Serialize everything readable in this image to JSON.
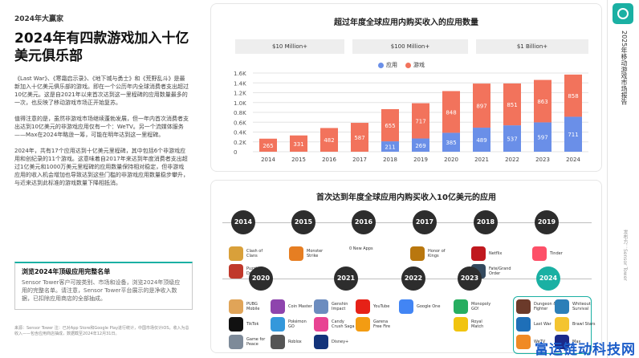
{
  "left": {
    "eyebrow": "2024年大赢家",
    "headline": "2024年有四款游戏加入十亿美元俱乐部",
    "para1": "《Last War》、《寒霜启示录》、《地下城与勇士》和《荒野乱斗》是最新加入十亿美元俱乐部的游戏。即在一个公历年内全球消费者支出超过10亿美元。这是自2021年以来首次达到这一里程碑的应用数量最多的一次，也反映了移动游戏市场正开始复苏。",
    "para2": "值得注意的是，虽然非游戏市场继续蓬勃发展，但一年内首次消费者支出达到10亿美元的非游戏应用仅有一个：WeTV。另一个流媒体服务——Max在2024年略逊一筹，可能在明年达到这一里程碑。",
    "para3": "2024年，共有17个应用达到十亿美元里程碑，其中包括6个非游戏应用和创纪录的11个游戏。这意味着自2017年来达到年度消费者支出超过1亿美元和1000万美元里程碑的应用数量保持相对稳定，但非游戏应用的收入机会增加也导致达到这些门槛的非游戏应用数量稳步攀升，与近来达到此标准的游戏数量下降相抵消。",
    "callout_title": "浏览2024年顶级应用完整名单",
    "callout_body": "Sensor Tower客户可按类别、市场和设备，浏览2024年顶级应用的完整名单。请注意，Sensor Tower平台展示的是净收入数据，已扣除应用商店的全部抽成。",
    "footnote": "来源：Sensor Tower 注：已对App Store和Google Play进行统计，中国市场仅计iOS，收入为总收入——包含应用商店抽成，数据截至2024年12月31日。"
  },
  "sidebar": {
    "vertical_title": "2025年移动游戏市场报告",
    "vertical_sub": "发布方：Sensor Tower"
  },
  "watermark": "富运链动科技网",
  "chart_data": {
    "type": "bar",
    "title": "超过年度全球应用内购买收入的应用数量",
    "bands": [
      "$10 Million+",
      "$100 Million+",
      "$1 Billion+"
    ],
    "legend": [
      {
        "name": "应用",
        "color": "#6a8fe8"
      },
      {
        "name": "游戏",
        "color": "#f2735c"
      }
    ],
    "categories": [
      "2014",
      "2015",
      "2016",
      "2017",
      "2018",
      "2019",
      "2020",
      "2021",
      "2022",
      "2023",
      "2024"
    ],
    "series": [
      {
        "name": "应用",
        "values": [
          0,
          0,
          0,
          0,
          211,
          269,
          385,
          489,
          537,
          597,
          711
        ]
      },
      {
        "name": "游戏",
        "values": [
          265,
          331,
          482,
          587,
          655,
          717,
          848,
          897,
          851,
          863,
          858
        ]
      }
    ],
    "ylim": [
      0,
      1600
    ],
    "yticks": [
      "0",
      "0.2K",
      "0.4K",
      "0.6K",
      "0.8K",
      "1.0K",
      "1.2K",
      "1.4K",
      "1.6K"
    ],
    "grid": true,
    "legend_position": "top-center"
  },
  "timeline": {
    "title": "首次达到年度全球应用内购买收入10亿美元的应用",
    "rows": [
      {
        "years": [
          {
            "year": "2014",
            "apps": [
              {
                "name": "Clash of Clans",
                "color": "#d9a03a"
              },
              {
                "name": "Puzzle & Dragons",
                "color": "#c0392b"
              }
            ]
          },
          {
            "year": "2015",
            "apps": [
              {
                "name": "Monster Strike",
                "color": "#e67e22"
              }
            ]
          },
          {
            "year": "2016",
            "apps": [
              {
                "name": "0 New Apps",
                "color": ""
              }
            ]
          },
          {
            "year": "2017",
            "apps": [
              {
                "name": "Honor of Kings",
                "color": "#b9770e"
              }
            ]
          },
          {
            "year": "2018",
            "apps": [
              {
                "name": "Netflix",
                "color": "#c0181e"
              },
              {
                "name": "Fate/Grand Order",
                "color": "#34495e"
              }
            ]
          },
          {
            "year": "2019",
            "apps": [
              {
                "name": "Tinder",
                "color": "#fd5068"
              }
            ]
          }
        ]
      },
      {
        "years": [
          {
            "year": "2020",
            "apps": [
              {
                "name": "PUBG Mobile",
                "color": "#e0a458"
              },
              {
                "name": "TikTok",
                "color": "#111111"
              },
              {
                "name": "Game for Peace",
                "color": "#7d8a99"
              }
            ]
          },
          {
            "year": "2020b",
            "apps": [
              {
                "name": "Coin Master",
                "color": "#8e44ad"
              },
              {
                "name": "Pokémon GO",
                "color": "#3498db"
              },
              {
                "name": "Roblox",
                "color": "#555555"
              }
            ]
          },
          {
            "year": "2021",
            "apps": [
              {
                "name": "Genshin Impact",
                "color": "#6c8cbf"
              },
              {
                "name": "Candy Crush Saga",
                "color": "#e84393"
              },
              {
                "name": "Disney+",
                "color": "#12337a"
              }
            ]
          },
          {
            "year": "2021b",
            "apps": [
              {
                "name": "YouTube",
                "color": "#e62117"
              },
              {
                "name": "Garena Free Fire",
                "color": "#f39c12"
              }
            ]
          },
          {
            "year": "2022",
            "apps": [
              {
                "name": "Google One",
                "color": "#4285f4"
              }
            ]
          },
          {
            "year": "2023",
            "apps": [
              {
                "name": "Monopoly GO!",
                "color": "#27ae60"
              },
              {
                "name": "Royal Match",
                "color": "#f1c40f"
              }
            ]
          },
          {
            "year": "2024",
            "apps": [
              {
                "name": "Dungeon & Fighter",
                "color": "#6b3a2a"
              },
              {
                "name": "Last War",
                "color": "#1e6fb8"
              },
              {
                "name": "WeTV",
                "color": "#f08a24"
              }
            ]
          },
          {
            "year": "2024b",
            "apps": [
              {
                "name": "Whiteout Survival",
                "color": "#2c7fb8"
              },
              {
                "name": "Brawl Stars",
                "color": "#f4c430"
              },
              {
                "name": "Max",
                "color": "#1a2a8a"
              }
            ]
          }
        ]
      }
    ],
    "row2_years": [
      "2020",
      "2021",
      "2022",
      "2023",
      "2024"
    ]
  }
}
